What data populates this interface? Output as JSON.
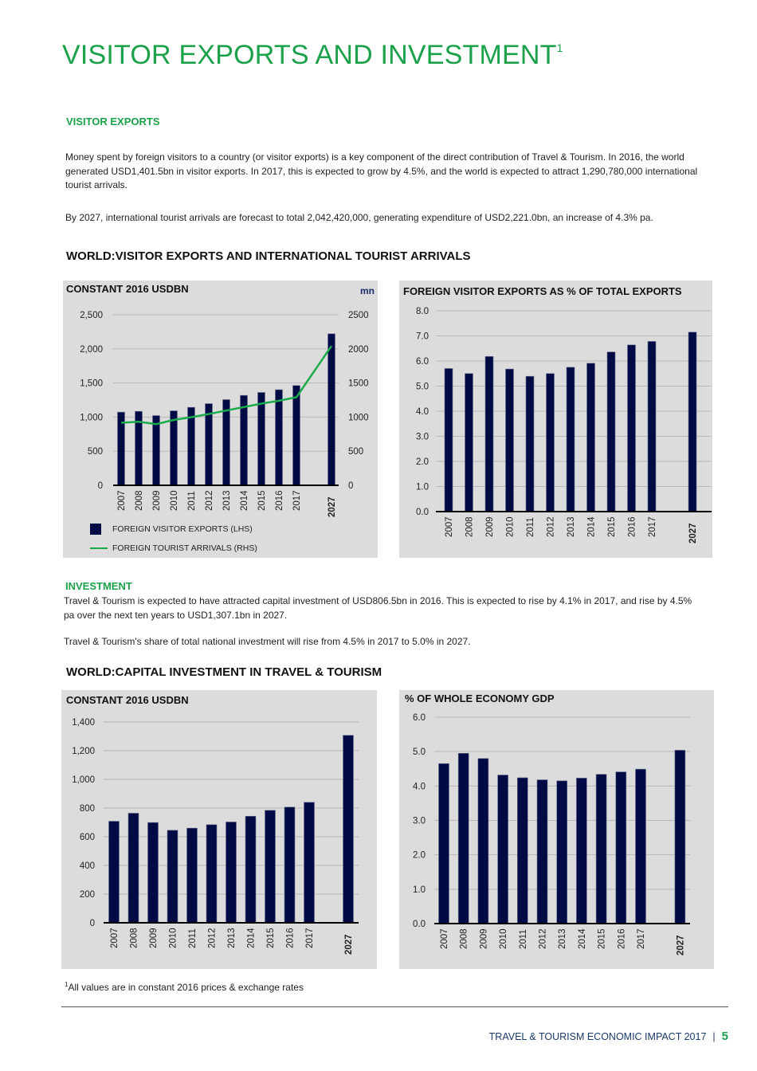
{
  "title": "VISITOR EXPORTS AND INVESTMENT",
  "title_superscript": "1",
  "visitor_exports": {
    "heading": "VISITOR EXPORTS",
    "para1": "Money spent by foreign visitors to a country (or visitor exports) is a key component of the direct contribution of Travel & Tourism. In 2016, the world generated USD1,401.5bn in visitor exports.  In 2017, this is expected to grow by 4.5%, and the world is expected to attract 1,290,780,000 international tourist arrivals.",
    "para2": "By 2027, international tourist arrivals are forecast to total 2,042,420,000, generating expenditure of USD2,221.0bn, an increase of 4.3% pa.",
    "chart_section_title": "WORLD:VISITOR EXPORTS AND INTERNATIONAL TOURIST ARRIVALS"
  },
  "investment": {
    "heading": "INVESTMENT",
    "para1": "Travel & Tourism is expected to have attracted capital investment of USD806.5bn in 2016.  This is expected to rise by 4.1% in 2017, and rise by 4.5% pa over the next ten years to USD1,307.1bn in 2027.",
    "para2": "Travel & Tourism's share of total national investment will rise from 4.5% in 2017 to 5.0%  in 2027.",
    "chart_section_title": "WORLD:CAPITAL INVESTMENT IN TRAVEL & TOURISM"
  },
  "footnote": {
    "mark": "1",
    "text": "All values are in constant 2016 prices & exchange rates"
  },
  "footer": {
    "text": "TRAVEL & TOURISM ECONOMIC IMPACT 2017",
    "separator": "|",
    "page_number": "5"
  },
  "colors": {
    "brand_green": "#1aa14a",
    "bar_navy": "#000b46",
    "line_green": "#1aab4b",
    "panel_bg": "#dcdcdc"
  },
  "chart_data": [
    {
      "type": "bar+line",
      "title": "CONSTANT 2016 USDBN",
      "right_unit": "mn",
      "categories": [
        "2007",
        "2008",
        "2009",
        "2010",
        "2011",
        "2012",
        "2013",
        "2014",
        "2015",
        "2016",
        "2017",
        "2027"
      ],
      "series": [
        {
          "name": "FOREIGN VISITOR EXPORTS (LHS)",
          "type": "bar",
          "axis": "left",
          "values": [
            1073,
            1084,
            1022,
            1092,
            1143,
            1197,
            1256,
            1318,
            1361,
            1401.5,
            1463,
            2221
          ]
        },
        {
          "name": "FOREIGN TOURIST ARRIVALS (RHS)",
          "type": "line",
          "axis": "right",
          "values": [
            917,
            932,
            897,
            958,
            998,
            1045,
            1096,
            1147,
            1197,
            1240,
            1291,
            2042
          ]
        }
      ],
      "ylim": [
        0,
        2500
      ],
      "y_ticks": [
        "0",
        "500",
        "1,000",
        "1,500",
        "2,000",
        "2,500"
      ],
      "y2lim": [
        0,
        2500
      ],
      "y2_ticks": [
        "0",
        "500",
        "1000",
        "1500",
        "2000",
        "2500"
      ],
      "grid": true,
      "legend": "bottom-left"
    },
    {
      "type": "bar",
      "title": "FOREIGN VISITOR EXPORTS AS % OF TOTAL EXPORTS",
      "categories": [
        "2007",
        "2008",
        "2009",
        "2010",
        "2011",
        "2012",
        "2013",
        "2014",
        "2015",
        "2016",
        "2017",
        "2027"
      ],
      "values": [
        5.7,
        5.5,
        6.18,
        5.68,
        5.39,
        5.5,
        5.75,
        5.91,
        6.36,
        6.64,
        6.78,
        7.15
      ],
      "ylim": [
        0,
        8
      ],
      "y_ticks": [
        "0.0",
        "1.0",
        "2.0",
        "3.0",
        "4.0",
        "5.0",
        "6.0",
        "7.0",
        "8.0"
      ],
      "grid": true
    },
    {
      "type": "bar",
      "title": "CONSTANT 2016 USDBN",
      "categories": [
        "2007",
        "2008",
        "2009",
        "2010",
        "2011",
        "2012",
        "2013",
        "2014",
        "2015",
        "2016",
        "2017",
        "2027"
      ],
      "values": [
        708,
        764,
        699,
        645,
        660,
        684,
        703,
        743,
        784,
        806.5,
        840,
        1307.1
      ],
      "ylim": [
        0,
        1400
      ],
      "y_ticks": [
        "0",
        "200",
        "400",
        "600",
        "800",
        "1,000",
        "1,200",
        "1,400"
      ],
      "grid": true
    },
    {
      "type": "bar",
      "title": "% OF WHOLE ECONOMY GDP",
      "categories": [
        "2007",
        "2008",
        "2009",
        "2010",
        "2011",
        "2012",
        "2013",
        "2014",
        "2015",
        "2016",
        "2017",
        "2027"
      ],
      "values": [
        4.65,
        4.95,
        4.8,
        4.32,
        4.24,
        4.18,
        4.15,
        4.23,
        4.34,
        4.41,
        4.49,
        5.04
      ],
      "ylim": [
        0,
        6
      ],
      "y_ticks": [
        "0.0",
        "1.0",
        "2.0",
        "3.0",
        "4.0",
        "5.0",
        "6.0"
      ],
      "grid": true
    }
  ]
}
